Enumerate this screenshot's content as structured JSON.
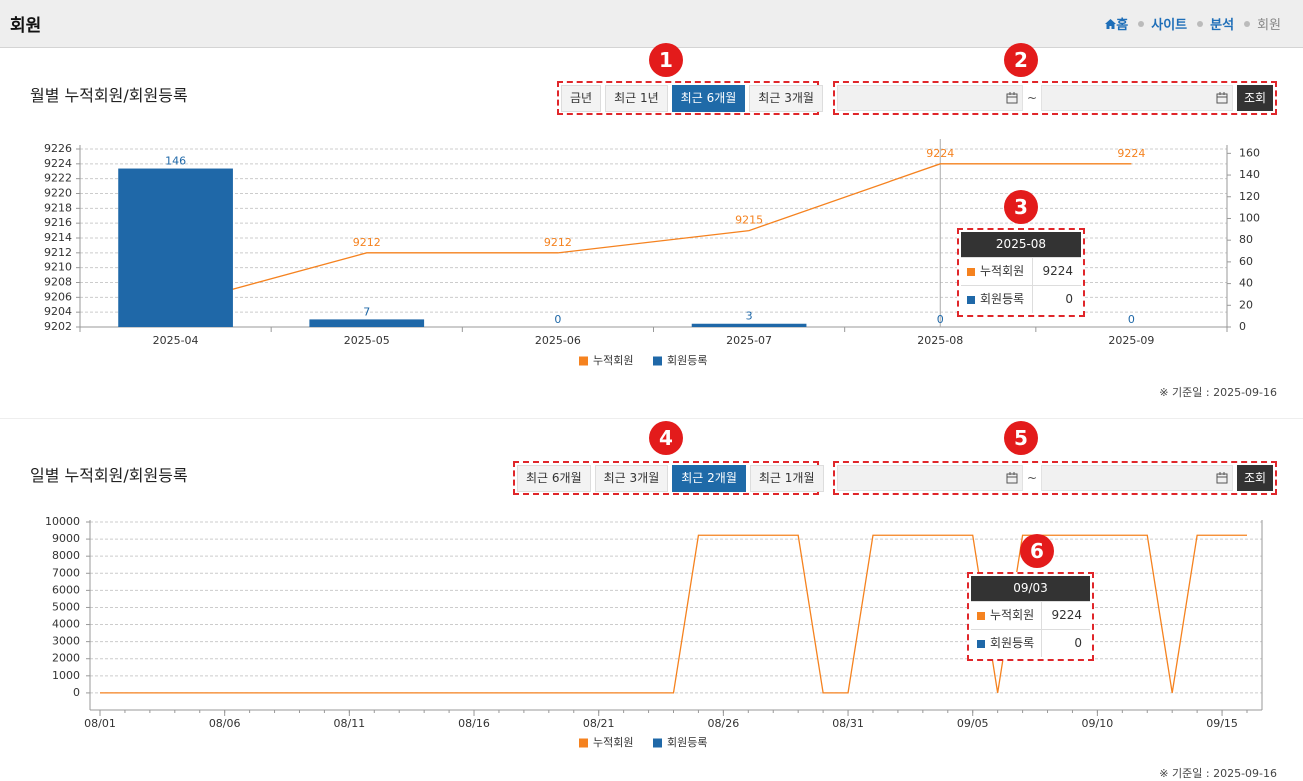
{
  "header": {
    "title": "회원",
    "breadcrumb": [
      "홈",
      "사이트",
      "분석",
      "회원"
    ]
  },
  "panels": [
    {
      "title": "월별 누적회원/회원등록",
      "buttons": [
        {
          "label": "금년",
          "active": false
        },
        {
          "label": "최근 1년",
          "active": false
        },
        {
          "label": "최근 6개월",
          "active": true
        },
        {
          "label": "최근 3개월",
          "active": false
        }
      ],
      "date_separator": "~",
      "search_button": "조회",
      "note": "※ 기준일 : 2025-09-16",
      "badges": [
        1,
        2,
        3
      ],
      "tooltip": {
        "title": "2025-08",
        "rows": [
          {
            "name": "누적회원",
            "value": 9224
          },
          {
            "name": "회원등록",
            "value": 0
          }
        ]
      }
    },
    {
      "title": "일별 누적회원/회원등록",
      "buttons": [
        {
          "label": "최근 6개월",
          "active": false
        },
        {
          "label": "최근 3개월",
          "active": false
        },
        {
          "label": "최근 2개월",
          "active": true
        },
        {
          "label": "최근 1개월",
          "active": false
        }
      ],
      "date_separator": "~",
      "search_button": "조회",
      "note": "※ 기준일 : 2025-09-16",
      "badges": [
        4,
        5,
        6
      ],
      "tooltip": {
        "title": "09/03",
        "rows": [
          {
            "name": "누적회원",
            "value": 9224
          },
          {
            "name": "회원등록",
            "value": 0
          }
        ]
      }
    }
  ],
  "chart_data": [
    {
      "type": "combo",
      "categories": [
        "2025-04",
        "2025-05",
        "2025-06",
        "2025-07",
        "2025-08",
        "2025-09"
      ],
      "series": [
        {
          "name": "누적회원",
          "type": "line",
          "color": "#f5821f",
          "values": [
            9205,
            9212,
            9212,
            9215,
            9224,
            9224
          ]
        },
        {
          "name": "회원등록",
          "type": "bar",
          "color": "#1f68a8",
          "axis": "y2",
          "values": [
            146,
            7,
            0,
            3,
            0,
            0
          ]
        }
      ],
      "ylim": [
        9202,
        9226
      ],
      "yticks": [
        9202,
        9204,
        9206,
        9208,
        9210,
        9212,
        9214,
        9216,
        9218,
        9220,
        9222,
        9224,
        9226
      ],
      "y2lim": [
        0,
        164
      ],
      "y2ticks": [
        0,
        20,
        40,
        60,
        80,
        100,
        120,
        140,
        160
      ],
      "grid": true,
      "legend": "bottom"
    },
    {
      "type": "combo",
      "x": [
        "08/01",
        "08/02",
        "08/03",
        "08/04",
        "08/05",
        "08/06",
        "08/07",
        "08/08",
        "08/09",
        "08/10",
        "08/11",
        "08/12",
        "08/13",
        "08/14",
        "08/15",
        "08/16",
        "08/17",
        "08/18",
        "08/19",
        "08/20",
        "08/21",
        "08/22",
        "08/23",
        "08/24",
        "08/25",
        "08/26",
        "08/27",
        "08/28",
        "08/29",
        "08/30",
        "08/31",
        "09/01",
        "09/02",
        "09/03",
        "09/04",
        "09/05",
        "09/06",
        "09/07",
        "09/08",
        "09/09",
        "09/10",
        "09/11",
        "09/12",
        "09/13",
        "09/14",
        "09/15",
        "09/16"
      ],
      "xticks": [
        "08/01",
        "08/06",
        "08/11",
        "08/16",
        "08/21",
        "08/26",
        "08/31",
        "09/05",
        "09/10",
        "09/15"
      ],
      "series": [
        {
          "name": "누적회원",
          "type": "line",
          "color": "#f5821f",
          "values": [
            0,
            0,
            0,
            0,
            0,
            0,
            0,
            0,
            0,
            0,
            0,
            0,
            0,
            0,
            0,
            0,
            0,
            0,
            0,
            0,
            0,
            0,
            0,
            0,
            9224,
            9224,
            9224,
            9224,
            9224,
            0,
            0,
            9224,
            9224,
            9224,
            9224,
            9224,
            0,
            9224,
            9224,
            9224,
            9224,
            9224,
            9224,
            0,
            9224,
            9224,
            9224
          ]
        },
        {
          "name": "회원등록",
          "type": "bar",
          "color": "#1f68a8",
          "values": [
            0,
            0,
            0,
            0,
            0,
            0,
            0,
            0,
            0,
            0,
            0,
            0,
            0,
            0,
            0,
            0,
            0,
            0,
            0,
            0,
            0,
            0,
            0,
            0,
            0,
            0,
            0,
            0,
            0,
            0,
            0,
            0,
            0,
            0,
            0,
            0,
            0,
            0,
            0,
            0,
            0,
            0,
            0,
            0,
            0,
            0,
            0
          ]
        }
      ],
      "ylim": [
        -1000,
        10000
      ],
      "yticks": [
        0,
        1000,
        2000,
        3000,
        4000,
        5000,
        6000,
        7000,
        8000,
        9000,
        10000
      ],
      "grid": true,
      "legend": "bottom"
    }
  ]
}
